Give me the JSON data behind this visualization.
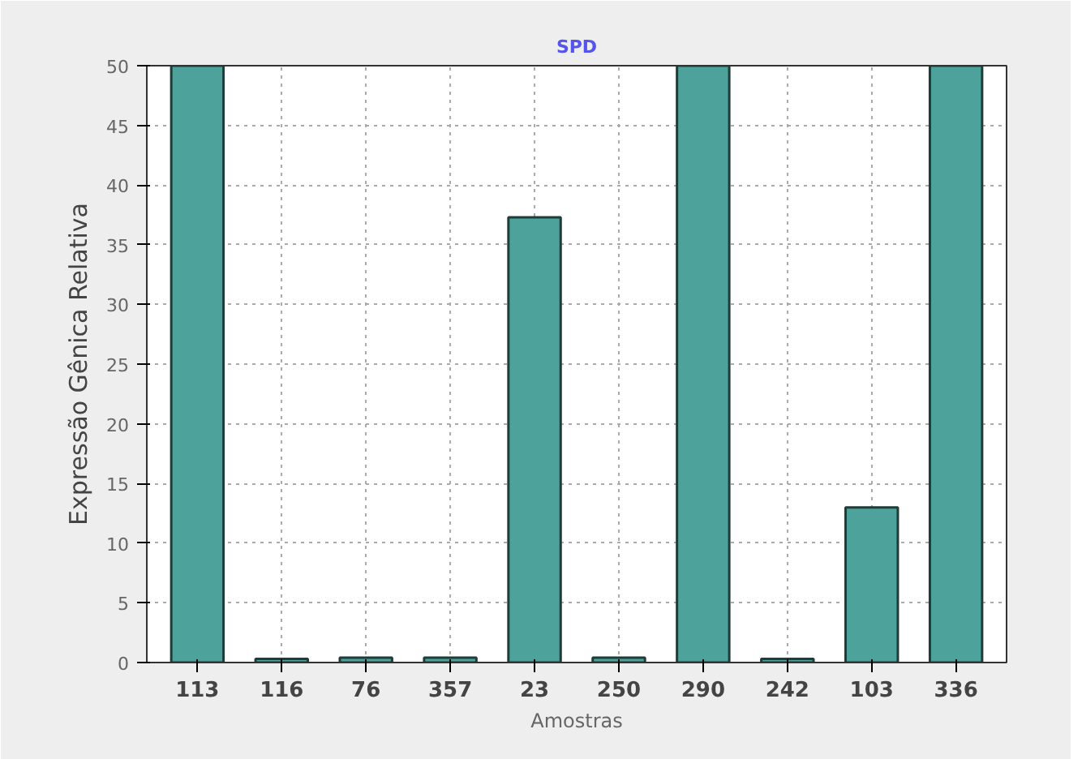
{
  "chart_data": {
    "type": "bar",
    "title": "SPD",
    "xlabel": "Amostras",
    "ylabel": "Expressão Gênica Relativa",
    "categories": [
      "113",
      "116",
      "76",
      "357",
      "23",
      "250",
      "290",
      "242",
      "103",
      "336"
    ],
    "values": [
      50,
      0.3,
      0.4,
      0.4,
      37.3,
      0.4,
      50,
      0.3,
      13,
      50
    ],
    "color": "#4da39b",
    "ylim": [
      0,
      50
    ],
    "yticks": [
      0,
      5,
      10,
      15,
      20,
      25,
      30,
      35,
      40,
      45,
      50
    ],
    "grid": true
  }
}
